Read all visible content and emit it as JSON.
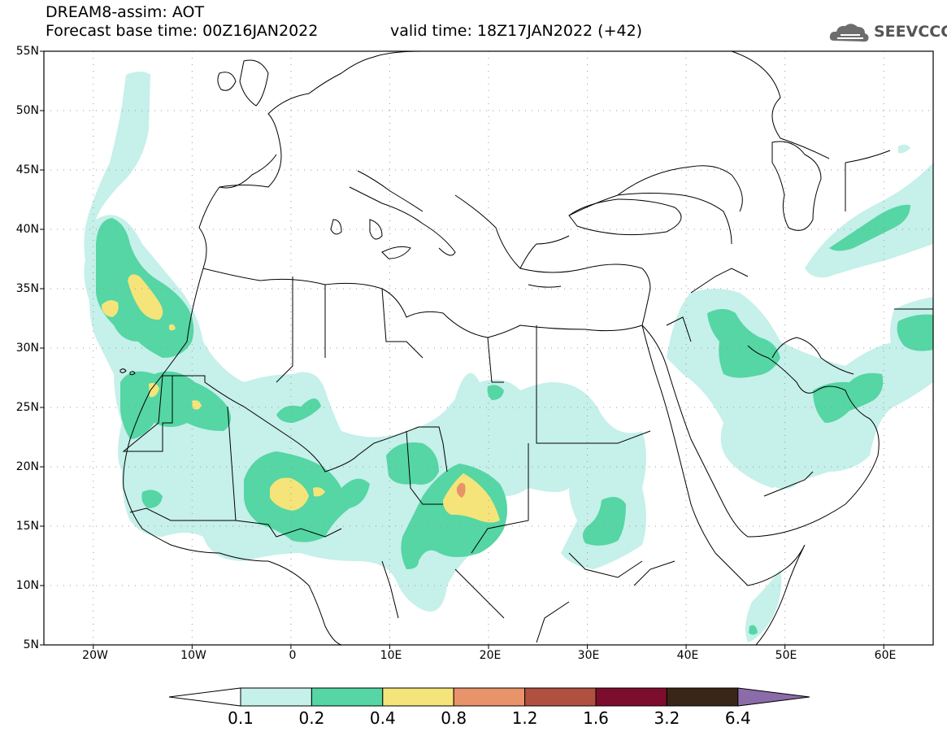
{
  "header": {
    "line1": "DREAM8-assim: AOT",
    "line2": "Forecast base time: 00Z16JAN2022",
    "valid": "valid time: 18Z17JAN2022 (+42)",
    "logo_text": "SEEVCCC",
    "logo_icon": "cloud-logo-icon"
  },
  "map": {
    "lat_ticks": [
      "55N",
      "50N",
      "45N",
      "40N",
      "35N",
      "30N",
      "25N",
      "20N",
      "15N",
      "10N",
      "5N"
    ],
    "lon_ticks": [
      "20W",
      "10W",
      "0",
      "10E",
      "20E",
      "30E",
      "40E",
      "50E",
      "60E"
    ],
    "lat_range": [
      5,
      55
    ],
    "lon_range": [
      -25,
      65
    ],
    "grid": "dotted",
    "field": "aerosol optical thickness"
  },
  "colorbar": {
    "labels": [
      "0.1",
      "0.2",
      "0.4",
      "0.8",
      "1.2",
      "1.6",
      "3.2",
      "6.4"
    ],
    "colors": {
      "lt01": "#ffffff",
      "c01": "#c6f0ea",
      "c02": "#55d6a4",
      "c04": "#f5e47a",
      "c08": "#e8936a",
      "c12": "#b05040",
      "c16": "#7d0d2c",
      "c32": "#3a2616",
      "c64": "#8c6ba9"
    }
  }
}
